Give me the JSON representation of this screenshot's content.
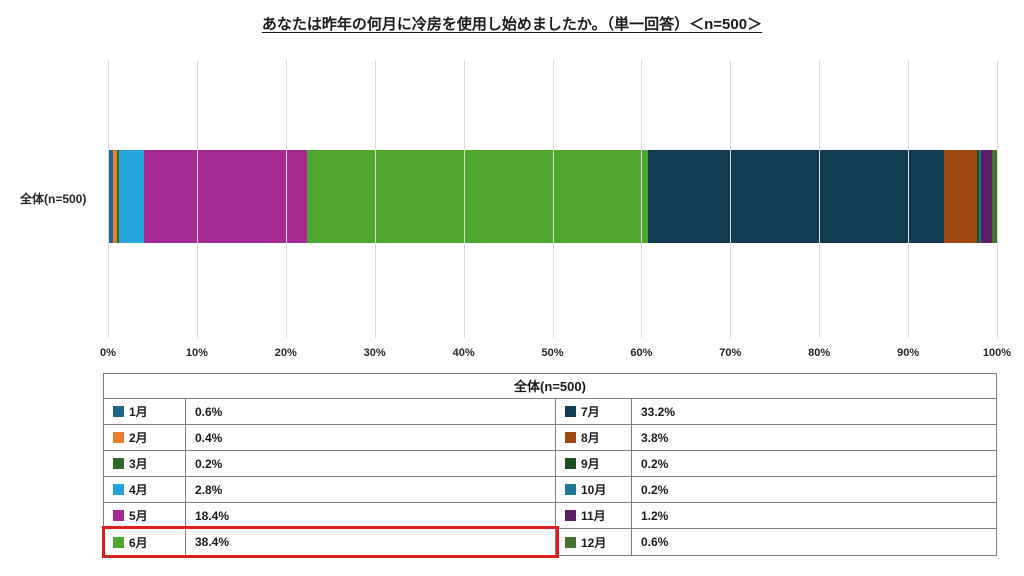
{
  "title": "あなたは昨年の何月に冷房を使用し始めましたか。（単一回答）＜n=500＞",
  "category_label": "全体(n=500)",
  "table": {
    "header": "全体(n=500)"
  },
  "highlight": {
    "month": "6月",
    "color": "#dd1e1e"
  },
  "chart_data": {
    "type": "bar",
    "subtype": "horizontal-stacked",
    "title": "あなたは昨年の何月に冷房を使用し始めましたか。（単一回答）＜n=500＞",
    "categories": [
      "全体(n=500)"
    ],
    "series": [
      {
        "name": "1月",
        "value": 0.6,
        "label": "0.6%",
        "color": "#21668a"
      },
      {
        "name": "2月",
        "value": 0.4,
        "label": "0.4%",
        "color": "#ed7d31"
      },
      {
        "name": "3月",
        "value": 0.2,
        "label": "0.2%",
        "color": "#2c6a27"
      },
      {
        "name": "4月",
        "value": 2.8,
        "label": "2.8%",
        "color": "#27a4dc"
      },
      {
        "name": "5月",
        "value": 18.4,
        "label": "18.4%",
        "color": "#a32b93"
      },
      {
        "name": "6月",
        "value": 38.4,
        "label": "38.4%",
        "color": "#4ea72e"
      },
      {
        "name": "7月",
        "value": 33.2,
        "label": "33.2%",
        "color": "#133d53"
      },
      {
        "name": "8月",
        "value": 3.8,
        "label": "3.8%",
        "color": "#9c4a12"
      },
      {
        "name": "9月",
        "value": 0.2,
        "label": "0.2%",
        "color": "#1e4d22"
      },
      {
        "name": "10月",
        "value": 0.2,
        "label": "0.2%",
        "color": "#1f7695"
      },
      {
        "name": "11月",
        "value": 1.2,
        "label": "1.2%",
        "color": "#5b1f63"
      },
      {
        "name": "12月",
        "value": 0.6,
        "label": "0.6%",
        "color": "#49702e"
      }
    ],
    "x_ticks": [
      "0%",
      "10%",
      "20%",
      "30%",
      "40%",
      "50%",
      "60%",
      "70%",
      "80%",
      "90%",
      "100%"
    ],
    "xlim": [
      0,
      100
    ],
    "grid": true,
    "legend_position": "table-below",
    "highlighted_series": "6月"
  }
}
